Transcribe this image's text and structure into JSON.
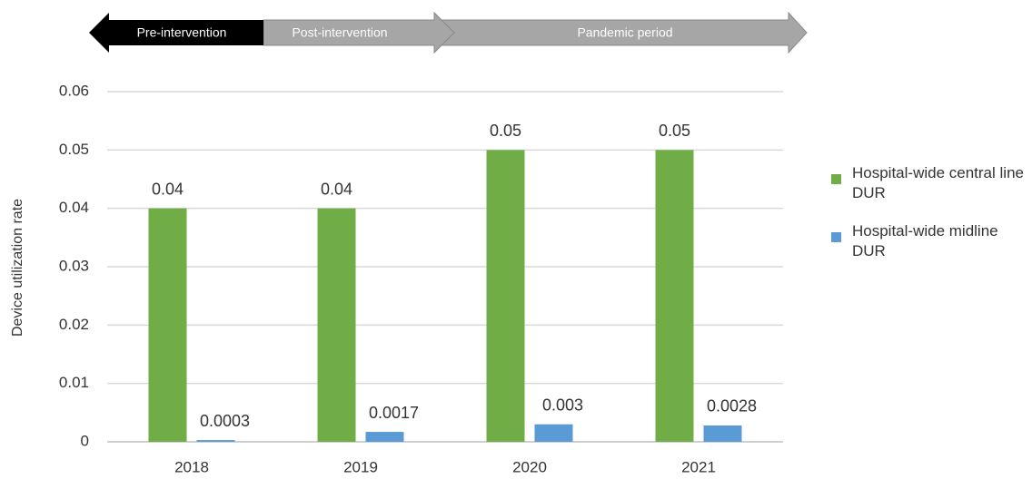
{
  "chart_data": {
    "type": "bar",
    "annotations": [
      "Pre-intervention",
      "Post-intervention",
      "Pandemic period"
    ],
    "ylabel": "Device utilization rate",
    "categories": [
      "2018",
      "2019",
      "2020",
      "2021"
    ],
    "series": [
      {
        "name": "Hospital-wide central line DUR",
        "color": "#70ad47",
        "values": [
          0.04,
          0.04,
          0.05,
          0.05
        ]
      },
      {
        "name": "Hospital-wide midline DUR",
        "color": "#5b9bd5",
        "values": [
          0.0003,
          0.0017,
          0.003,
          0.0028
        ]
      }
    ],
    "ylim": [
      0,
      0.06
    ],
    "yticks": [
      0,
      0.01,
      0.02,
      0.03,
      0.04,
      0.05,
      0.06
    ],
    "grid": true
  }
}
